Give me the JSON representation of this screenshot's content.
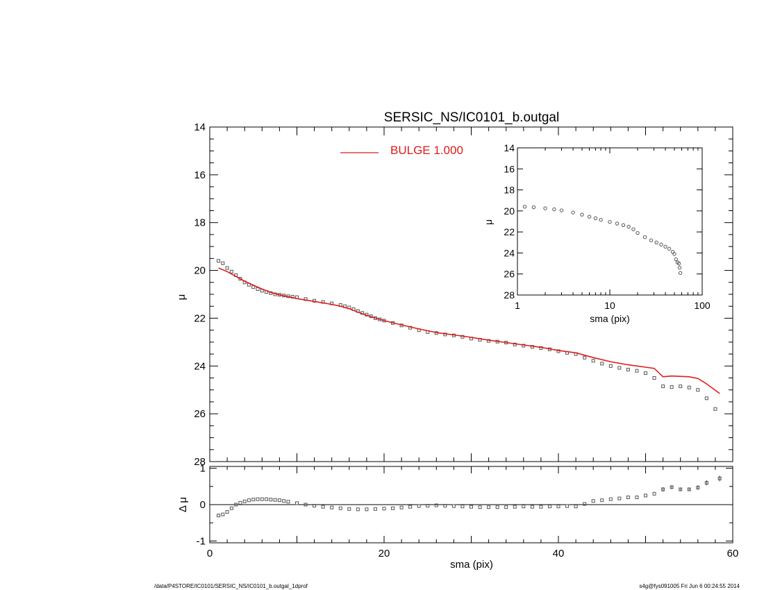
{
  "chart_data": [
    {
      "panel": "main",
      "type": "scatter",
      "title": "SERSIC_NS/IC0101_b.outgal",
      "ylabel": "μ",
      "xlim": [
        0,
        60
      ],
      "ylim": [
        28,
        14
      ],
      "yticks": [
        "14",
        "16",
        "18",
        "20",
        "22",
        "24",
        "26",
        "28"
      ],
      "legend": {
        "label": "BULGE 1.000",
        "color": "#e0191b",
        "position": "top-center"
      },
      "series": [
        {
          "kind": "data",
          "x": [
            1.0,
            1.5,
            2.0,
            2.5,
            3.0,
            3.5,
            4.0,
            4.5,
            5.0,
            5.5,
            6.0,
            6.5,
            7.0,
            7.5,
            8.0,
            8.5,
            9.0,
            9.5,
            10.0,
            11.0,
            12.0,
            13.0,
            14.0,
            15.0,
            15.5,
            16.0,
            16.5,
            17.0,
            17.5,
            18.0,
            18.5,
            19.0,
            19.5,
            20.0,
            21.0,
            22.0,
            23.0,
            24.0,
            25.0,
            26.0,
            27.0,
            28.0,
            29.0,
            30.0,
            31.0,
            32.0,
            33.0,
            34.0,
            35.0,
            36.0,
            37.0,
            38.0,
            39.0,
            40.0,
            41.0,
            42.0,
            43.0,
            44.0,
            45.0,
            46.0,
            47.0,
            48.0,
            49.0,
            50.0,
            51.0,
            52.0,
            53.0,
            54.0,
            55.0,
            56.0,
            57.0,
            58.0
          ],
          "y": [
            19.6,
            19.7,
            19.9,
            20.05,
            20.2,
            20.35,
            20.5,
            20.6,
            20.7,
            20.78,
            20.85,
            20.9,
            20.95,
            21.0,
            21.02,
            21.05,
            21.08,
            21.1,
            21.12,
            21.2,
            21.27,
            21.32,
            21.38,
            21.45,
            21.5,
            21.55,
            21.62,
            21.7,
            21.78,
            21.85,
            21.92,
            22.0,
            22.05,
            22.1,
            22.2,
            22.3,
            22.4,
            22.5,
            22.58,
            22.62,
            22.68,
            22.72,
            22.78,
            22.85,
            22.9,
            22.95,
            22.98,
            23.02,
            23.1,
            23.15,
            23.2,
            23.25,
            23.3,
            23.38,
            23.45,
            23.5,
            23.65,
            23.78,
            23.9,
            24.0,
            24.08,
            24.15,
            24.2,
            24.3,
            24.5,
            24.85,
            24.88,
            24.85,
            24.9,
            25.0,
            25.35,
            25.8
          ]
        },
        {
          "kind": "model",
          "name": "BULGE 1.000",
          "x": [
            1.0,
            2.0,
            3.0,
            4.0,
            5.0,
            6.0,
            7.0,
            8.0,
            10.0,
            12.0,
            14.0,
            15.0,
            16.0,
            17.0,
            18.0,
            20.0,
            22.0,
            24.0,
            26.0,
            28.0,
            30.0,
            32.0,
            34.0,
            36.0,
            38.0,
            40.0,
            42.0,
            44.0,
            46.0,
            48.0,
            50.0,
            51.0,
            52.0,
            53.0,
            55.0,
            56.0,
            57.0,
            58.5
          ],
          "y": [
            19.9,
            20.05,
            20.25,
            20.45,
            20.62,
            20.78,
            20.92,
            21.02,
            21.18,
            21.3,
            21.42,
            21.5,
            21.6,
            21.75,
            21.88,
            22.1,
            22.28,
            22.45,
            22.6,
            22.7,
            22.8,
            22.92,
            23.02,
            23.12,
            23.22,
            23.35,
            23.45,
            23.65,
            23.82,
            23.95,
            24.05,
            24.1,
            24.45,
            24.42,
            24.45,
            24.52,
            24.75,
            25.15
          ]
        }
      ]
    },
    {
      "panel": "inset",
      "type": "scatter",
      "xlabel": "sma (pix)",
      "ylabel": "μ",
      "xscale": "log",
      "xlim": [
        1,
        100
      ],
      "ylim": [
        28,
        14
      ],
      "xticks": [
        "1",
        "10",
        "100"
      ],
      "yticks": [
        "14",
        "16",
        "18",
        "20",
        "22",
        "24",
        "26",
        "28"
      ],
      "series": [
        {
          "kind": "data",
          "x": [
            1.2,
            1.5,
            2.0,
            2.5,
            3.0,
            4.0,
            5.0,
            6.0,
            7.0,
            8.0,
            10.0,
            12.0,
            14.0,
            16.0,
            18.0,
            20.0,
            24.0,
            28.0,
            32.0,
            36.0,
            40.0,
            44.0,
            48.0,
            50.0,
            52.0,
            54.0,
            56.0,
            57.0,
            58.0
          ],
          "y": [
            19.6,
            19.65,
            19.75,
            19.85,
            19.95,
            20.15,
            20.35,
            20.55,
            20.7,
            20.85,
            21.05,
            21.2,
            21.35,
            21.5,
            21.75,
            22.1,
            22.5,
            22.8,
            23.0,
            23.2,
            23.4,
            23.6,
            23.9,
            24.1,
            24.6,
            24.9,
            25.0,
            25.4,
            25.9
          ]
        }
      ]
    },
    {
      "panel": "residual",
      "type": "scatter",
      "xlabel": "sma (pix)",
      "ylabel": "Δ μ",
      "xlim": [
        0,
        60
      ],
      "ylim": [
        -1.05,
        1.05
      ],
      "xticks": [
        "0",
        "20",
        "40",
        "60"
      ],
      "yticks": [
        "1",
        "0",
        "-1"
      ],
      "series": [
        {
          "kind": "residual",
          "x": [
            1.0,
            1.5,
            2.0,
            2.5,
            3.0,
            3.5,
            4.0,
            4.5,
            5.0,
            5.5,
            6.0,
            6.5,
            7.0,
            7.5,
            8.0,
            8.5,
            9.0,
            10.0,
            11.0,
            12.0,
            13.0,
            14.0,
            15.0,
            16.0,
            17.0,
            18.0,
            19.0,
            20.0,
            21.0,
            22.0,
            23.0,
            24.0,
            25.0,
            26.0,
            27.0,
            28.0,
            29.0,
            30.0,
            31.0,
            32.0,
            33.0,
            34.0,
            35.0,
            36.0,
            37.0,
            38.0,
            39.0,
            40.0,
            41.0,
            42.0,
            43.0,
            44.0,
            45.0,
            46.0,
            47.0,
            48.0,
            49.0,
            50.0,
            51.0,
            52.0,
            53.0,
            54.0,
            55.0,
            56.0,
            57.0,
            58.5
          ],
          "y": [
            -0.3,
            -0.27,
            -0.2,
            -0.1,
            0.0,
            0.05,
            0.09,
            0.12,
            0.14,
            0.15,
            0.15,
            0.15,
            0.14,
            0.13,
            0.12,
            0.1,
            0.08,
            0.04,
            0.0,
            -0.03,
            -0.06,
            -0.08,
            -0.1,
            -0.12,
            -0.13,
            -0.13,
            -0.12,
            -0.11,
            -0.1,
            -0.08,
            -0.06,
            -0.04,
            -0.03,
            -0.02,
            -0.03,
            -0.04,
            -0.05,
            -0.06,
            -0.07,
            -0.07,
            -0.07,
            -0.07,
            -0.06,
            -0.05,
            -0.06,
            -0.06,
            -0.05,
            -0.05,
            -0.04,
            -0.05,
            0.02,
            0.1,
            0.12,
            0.15,
            0.17,
            0.2,
            0.2,
            0.25,
            0.3,
            0.42,
            0.48,
            0.42,
            0.42,
            0.47,
            0.6,
            0.72
          ],
          "err": [
            0,
            0,
            0,
            0,
            0,
            0,
            0,
            0,
            0,
            0,
            0,
            0,
            0,
            0,
            0,
            0,
            0,
            0,
            0,
            0,
            0,
            0,
            0,
            0,
            0,
            0,
            0,
            0,
            0,
            0,
            0,
            0,
            0,
            0,
            0,
            0,
            0,
            0,
            0,
            0,
            0,
            0,
            0,
            0,
            0,
            0,
            0,
            0,
            0,
            0,
            0,
            0,
            0,
            0,
            0,
            0,
            0,
            0,
            0,
            0.06,
            0.05,
            0.05,
            0.05,
            0.06,
            0.07,
            0.08
          ]
        }
      ]
    }
  ],
  "footer": {
    "left": "/data/P4STORE/IC0101/SERSIC_NS/IC0101_b.outgal_1dprof",
    "right": "s4g@fys091005  Fri Jun  6 00:24:55 2014"
  }
}
